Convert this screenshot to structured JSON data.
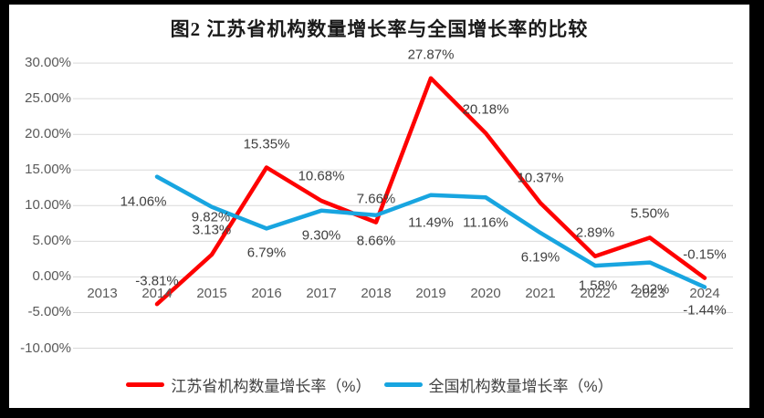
{
  "frame": {
    "border_color": "#000000",
    "canvas_color": "#ffffff"
  },
  "chart_data": {
    "type": "line",
    "title": "图2  江苏省机构数量增长率与全国增长率的比较",
    "categories": [
      "2013",
      "2014",
      "2015",
      "2016",
      "2017",
      "2018",
      "2019",
      "2020",
      "2021",
      "2022",
      "2023",
      "2024"
    ],
    "y_tick_labels": [
      "30.00%",
      "25.00%",
      "20.00%",
      "15.00%",
      "10.00%",
      "5.00%",
      "0.00%",
      "-5.00%",
      "-10.00%"
    ],
    "y_tick_values": [
      30,
      25,
      20,
      15,
      10,
      5,
      0,
      -5,
      -10
    ],
    "ylim": [
      -10,
      30
    ],
    "grid": "horizontal",
    "gridline_color": "#d9d9d9",
    "legend_position": "bottom",
    "series": [
      {
        "name": "江苏省机构数量增长率（%）",
        "color": "#fe0000",
        "values": [
          null,
          -3.81,
          3.13,
          15.35,
          10.68,
          7.66,
          27.87,
          20.18,
          10.37,
          2.89,
          5.5,
          -0.15
        ],
        "labels": [
          null,
          "-3.81%",
          "3.13%",
          "15.35%",
          "10.68%",
          "7.66%",
          "27.87%",
          "20.18%",
          "10.37%",
          "2.89%",
          "5.50%",
          "-0.15%"
        ]
      },
      {
        "name": "全国机构数量增长率（%）",
        "color": "#18a5e0",
        "values": [
          null,
          14.06,
          9.82,
          6.79,
          9.3,
          8.66,
          11.49,
          11.16,
          6.19,
          1.58,
          2.02,
          -1.44
        ],
        "labels": [
          null,
          "14.06%",
          "9.82%",
          "6.79%",
          "9.30%",
          "8.66%",
          "11.49%",
          "11.16%",
          "6.19%",
          "1.58%",
          "2.02%",
          "-1.44%"
        ]
      }
    ]
  }
}
